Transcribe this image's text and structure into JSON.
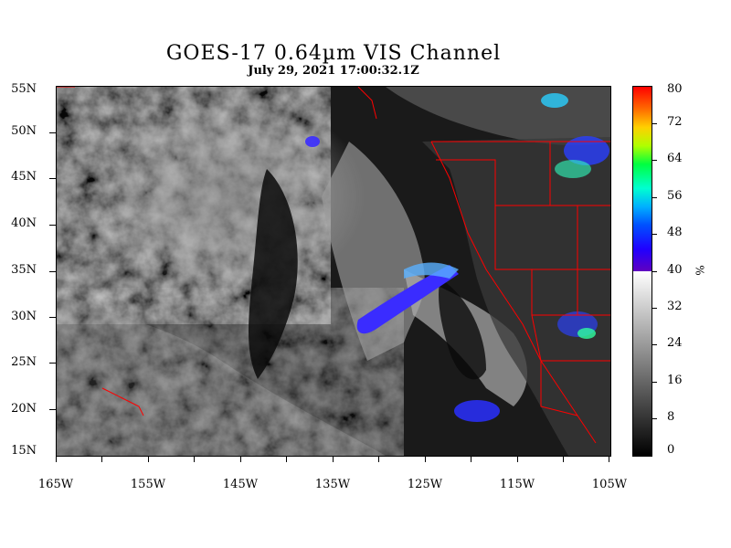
{
  "title": "GOES-17  0.64µm VIS Channel",
  "subtitle": "July 29,  2021 17:00:32.1Z",
  "lat_labels": [
    "55N",
    "50N",
    "45N",
    "40N",
    "35N",
    "30N",
    "25N",
    "20N",
    "15N"
  ],
  "lon_labels": [
    "165W",
    "155W",
    "145W",
    "135W",
    "125W",
    "115W",
    "105W"
  ],
  "colorbar": {
    "labels": [
      "80",
      "72",
      "64",
      "56",
      "48",
      "40",
      "32",
      "24",
      "16",
      "8",
      "0"
    ],
    "unit": "%",
    "colors_high": [
      "#ff0000",
      "#ff6a00",
      "#ffd000",
      "#b0ff00",
      "#00ff40",
      "#00ffd0",
      "#00b0ff",
      "#0050ff",
      "#2000ff",
      "#6000c0"
    ],
    "colors_low": [
      "#ffffff",
      "#000000"
    ]
  },
  "map": {
    "lat_range": [
      15,
      55
    ],
    "lon_range": [
      -165,
      -105
    ],
    "border_color": "#ff0000",
    "cloud_high_color": "#3a2cff"
  }
}
